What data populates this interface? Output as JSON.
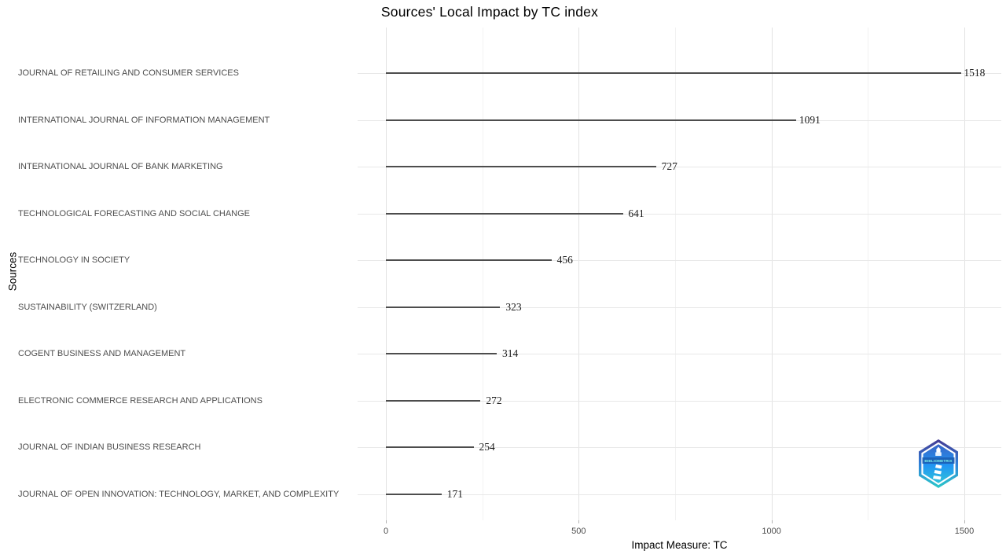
{
  "chart_data": {
    "type": "bar",
    "orientation": "horizontal",
    "title": "Sources' Local Impact by TC index",
    "xlabel": "Impact Measure: TC",
    "ylabel": "Sources",
    "categories": [
      "JOURNAL OF RETAILING AND CONSUMER SERVICES",
      "INTERNATIONAL JOURNAL OF INFORMATION MANAGEMENT",
      "INTERNATIONAL JOURNAL OF BANK MARKETING",
      "TECHNOLOGICAL FORECASTING AND SOCIAL CHANGE",
      "TECHNOLOGY IN SOCIETY",
      "SUSTAINABILITY (SWITZERLAND)",
      "COGENT BUSINESS AND MANAGEMENT",
      "ELECTRONIC COMMERCE RESEARCH AND APPLICATIONS",
      "JOURNAL OF INDIAN BUSINESS RESEARCH",
      "JOURNAL OF OPEN INNOVATION: TECHNOLOGY, MARKET, AND COMPLEXITY"
    ],
    "values": [
      1518,
      1091,
      727,
      641,
      456,
      323,
      314,
      272,
      254,
      171
    ],
    "x_ticks": [
      0,
      500,
      1000,
      1500
    ],
    "x_minor_ticks": [
      250,
      750,
      1250
    ],
    "xlim": [
      -76,
      1594
    ],
    "grid": true,
    "legend": false,
    "bar_color": "#4d4d4d",
    "major_grid_color": "#e2e2e2",
    "minor_grid_color": "#f2f2f2"
  },
  "logo": {
    "label": "BIBLIOMETRIX",
    "top_color": "#463a92",
    "mid_color": "#2e7fd9",
    "bottom_color": "#2cc9c9",
    "band_color": "#1b5fb5"
  }
}
